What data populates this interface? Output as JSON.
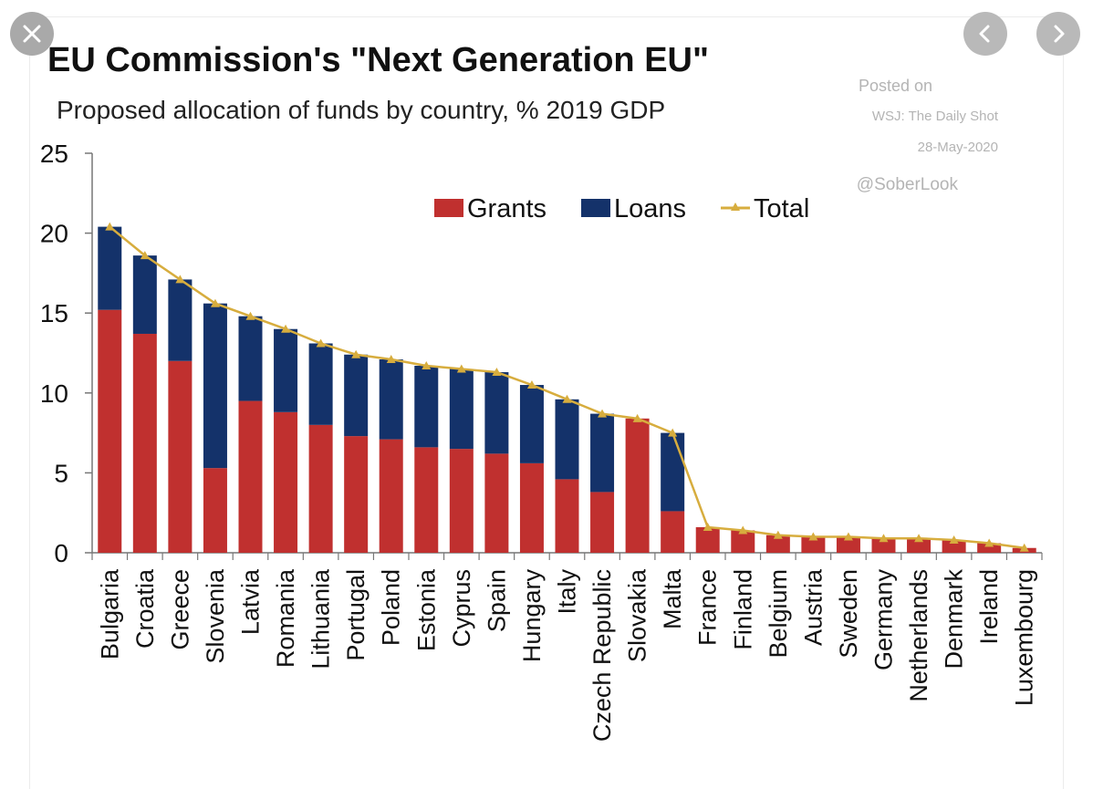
{
  "viewer": {
    "close_icon": "close-icon",
    "prev_icon": "chevron-left-icon",
    "next_icon": "chevron-right-icon"
  },
  "colors": {
    "grants": "#c0302f",
    "loans": "#14326a",
    "total": "#d7ad3e",
    "axis": "#777777",
    "text": "#111111",
    "watermark": "#b4b4b4"
  },
  "chart_data": {
    "type": "bar",
    "stacked": true,
    "title": "EU Commission's \"Next Generation EU\"",
    "subtitle": "Proposed allocation of funds by country, % 2019 GDP",
    "source_lines": [
      "Posted on",
      "WSJ: The Daily Shot",
      "28-May-2020",
      "@SoberLook"
    ],
    "xlabel": "",
    "ylabel": "",
    "ylim": [
      0,
      25
    ],
    "yticks": [
      0,
      5,
      10,
      15,
      20,
      25
    ],
    "grid": false,
    "legend_position": "top-right",
    "categories": [
      "Bulgaria",
      "Croatia",
      "Greece",
      "Slovenia",
      "Latvia",
      "Romania",
      "Lithuania",
      "Portugal",
      "Poland",
      "Estonia",
      "Cyprus",
      "Spain",
      "Hungary",
      "Italy",
      "Czech Republic",
      "Slovakia",
      "Malta",
      "France",
      "Finland",
      "Belgium",
      "Austria",
      "Sweden",
      "Germany",
      "Netherlands",
      "Denmark",
      "Ireland",
      "Luxembourg"
    ],
    "series": [
      {
        "name": "Grants",
        "kind": "bar",
        "values": [
          15.2,
          13.7,
          12.0,
          5.3,
          9.5,
          8.8,
          8.0,
          7.3,
          7.1,
          6.6,
          6.5,
          6.2,
          5.6,
          4.6,
          3.8,
          8.4,
          2.6,
          1.6,
          1.4,
          1.1,
          1.0,
          1.0,
          0.9,
          0.9,
          0.8,
          0.6,
          0.3
        ]
      },
      {
        "name": "Loans",
        "kind": "bar",
        "values": [
          5.2,
          4.9,
          5.1,
          10.3,
          5.3,
          5.2,
          5.1,
          5.1,
          5.0,
          5.1,
          5.0,
          5.1,
          4.9,
          5.0,
          4.9,
          0.0,
          4.9,
          0.0,
          0.0,
          0.0,
          0.0,
          0.0,
          0.0,
          0.0,
          0.0,
          0.0,
          0.0
        ]
      },
      {
        "name": "Total",
        "kind": "line",
        "values": [
          20.4,
          18.6,
          17.1,
          15.6,
          14.8,
          14.0,
          13.1,
          12.4,
          12.1,
          11.7,
          11.5,
          11.3,
          10.5,
          9.6,
          8.7,
          8.4,
          7.5,
          1.6,
          1.4,
          1.1,
          1.0,
          1.0,
          0.9,
          0.9,
          0.8,
          0.6,
          0.3
        ]
      }
    ]
  }
}
